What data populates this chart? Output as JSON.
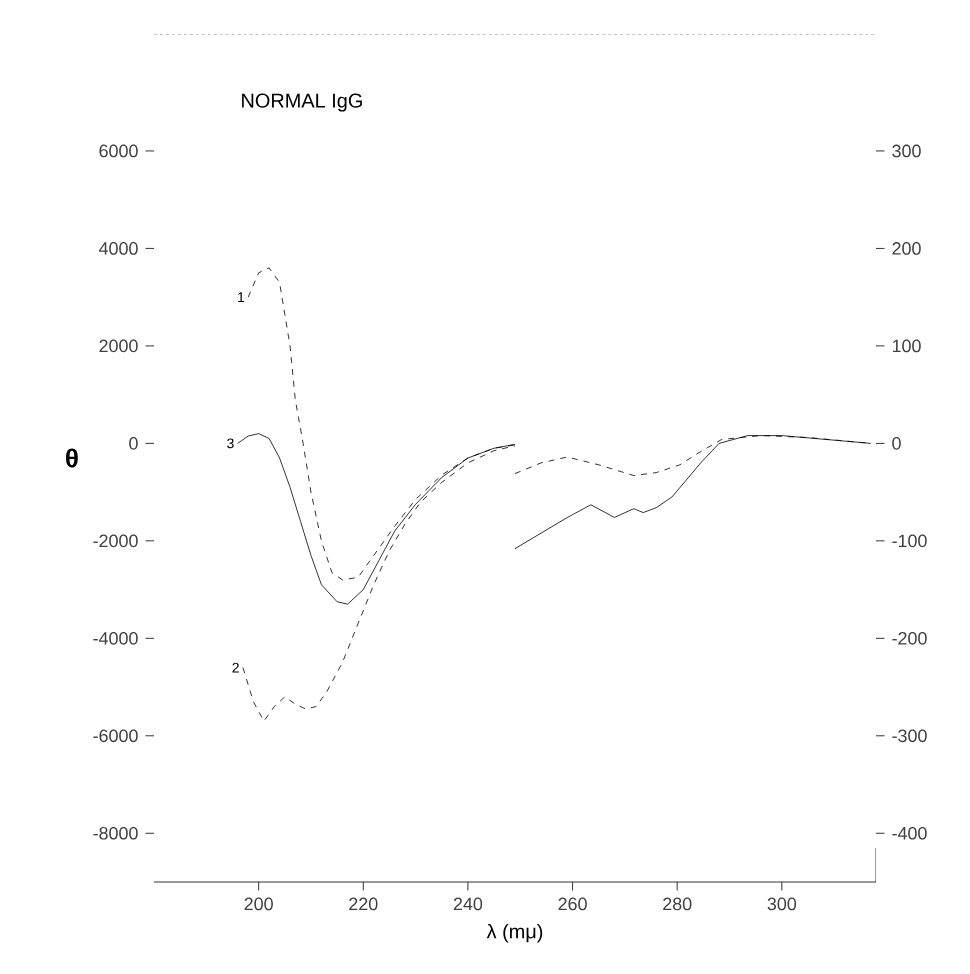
{
  "chart_data": {
    "type": "line",
    "title": "NORMAL IgG",
    "xlabel": "λ (mμ)",
    "ylabel": "θ",
    "xlim": [
      180,
      318
    ],
    "ylim": [
      -9000,
      8400
    ],
    "y2lim": [
      -450,
      420
    ],
    "xticks": [
      200,
      220,
      240,
      260,
      280,
      300
    ],
    "yticks": [
      -8000,
      -6000,
      -4000,
      -2000,
      0,
      2000,
      4000,
      6000
    ],
    "y2ticks": [
      -400,
      -300,
      -200,
      -100,
      0,
      100,
      200,
      300
    ],
    "series": [
      {
        "name": "1",
        "color": "#000000",
        "line_style": "dashed",
        "x": [
          198,
          200,
          202,
          204,
          206,
          207,
          208.5,
          210,
          212,
          214,
          216,
          219,
          222,
          226,
          230,
          235,
          240,
          245,
          249
        ],
        "values": [
          3000,
          3500,
          3600,
          3300,
          2000,
          900,
          0,
          -1000,
          -2000,
          -2650,
          -2800,
          -2750,
          -2300,
          -1700,
          -1150,
          -650,
          -300,
          -100,
          -30
        ]
      },
      {
        "name": "2",
        "color": "#000000",
        "line_style": "dashed",
        "x": [
          197,
          199,
          201,
          203,
          205,
          207,
          209,
          211,
          213,
          216,
          219,
          222,
          225,
          228,
          231,
          235,
          240,
          245,
          249
        ],
        "values": [
          -4600,
          -5300,
          -5700,
          -5400,
          -5200,
          -5350,
          -5450,
          -5400,
          -5100,
          -4500,
          -3700,
          -2900,
          -2200,
          -1650,
          -1200,
          -800,
          -400,
          -150,
          -50
        ]
      },
      {
        "name": "3",
        "color": "#000000",
        "line_style": "solid",
        "x": [
          196,
          198,
          200,
          202,
          204,
          206,
          208,
          210,
          212,
          215,
          217,
          220,
          223,
          226,
          230,
          235,
          240,
          245,
          249
        ],
        "values": [
          0,
          150,
          200,
          100,
          -300,
          -900,
          -1600,
          -2300,
          -2900,
          -3250,
          -3300,
          -3000,
          -2400,
          -1800,
          -1250,
          -700,
          -300,
          -100,
          -20
        ]
      },
      {
        "color": "#000000",
        "line_style": "dashed",
        "axis": "y2",
        "x": [
          249,
          254,
          259,
          265,
          271.7,
          276,
          280.5,
          284,
          288.5,
          296,
          305,
          317
        ],
        "values": [
          -31,
          -20,
          -14,
          -22,
          -33,
          -30,
          -22,
          -10,
          4,
          8,
          6,
          0
        ]
      },
      {
        "color": "#000000",
        "line_style": "solid",
        "axis": "y2",
        "x": [
          249,
          254,
          259,
          263.5,
          268,
          271.7,
          273.5,
          276,
          279,
          284.5,
          288,
          293.5,
          300,
          317
        ],
        "values": [
          -108,
          -92,
          -76,
          -63,
          -76,
          -67,
          -71,
          -66,
          -55,
          -20,
          0,
          8,
          8,
          0
        ]
      }
    ]
  }
}
